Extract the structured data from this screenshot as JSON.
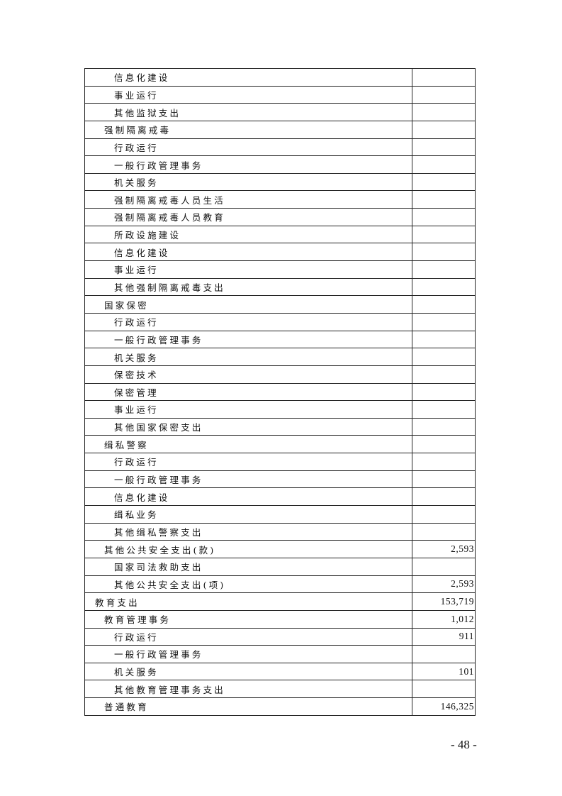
{
  "table": {
    "rows": [
      {
        "name": "信息化建设",
        "level": 2,
        "value": ""
      },
      {
        "name": "事业运行",
        "level": 2,
        "value": ""
      },
      {
        "name": "其他监狱支出",
        "level": 2,
        "value": ""
      },
      {
        "name": "强制隔离戒毒",
        "level": 1,
        "value": ""
      },
      {
        "name": "行政运行",
        "level": 2,
        "value": ""
      },
      {
        "name": "一般行政管理事务",
        "level": 2,
        "value": ""
      },
      {
        "name": "机关服务",
        "level": 2,
        "value": ""
      },
      {
        "name": "强制隔离戒毒人员生活",
        "level": 2,
        "value": ""
      },
      {
        "name": "强制隔离戒毒人员教育",
        "level": 2,
        "value": ""
      },
      {
        "name": "所政设施建设",
        "level": 2,
        "value": ""
      },
      {
        "name": "信息化建设",
        "level": 2,
        "value": ""
      },
      {
        "name": "事业运行",
        "level": 2,
        "value": ""
      },
      {
        "name": "其他强制隔离戒毒支出",
        "level": 2,
        "value": ""
      },
      {
        "name": "国家保密",
        "level": 1,
        "value": ""
      },
      {
        "name": "行政运行",
        "level": 2,
        "value": ""
      },
      {
        "name": "一般行政管理事务",
        "level": 2,
        "value": ""
      },
      {
        "name": "机关服务",
        "level": 2,
        "value": ""
      },
      {
        "name": "保密技术",
        "level": 2,
        "value": ""
      },
      {
        "name": "保密管理",
        "level": 2,
        "value": ""
      },
      {
        "name": "事业运行",
        "level": 2,
        "value": ""
      },
      {
        "name": "其他国家保密支出",
        "level": 2,
        "value": ""
      },
      {
        "name": "缉私警察",
        "level": 1,
        "value": ""
      },
      {
        "name": "行政运行",
        "level": 2,
        "value": ""
      },
      {
        "name": "一般行政管理事务",
        "level": 2,
        "value": ""
      },
      {
        "name": "信息化建设",
        "level": 2,
        "value": ""
      },
      {
        "name": "缉私业务",
        "level": 2,
        "value": ""
      },
      {
        "name": "其他缉私警察支出",
        "level": 2,
        "value": ""
      },
      {
        "name": "其他公共安全支出(款)",
        "level": 1,
        "value": "2,593"
      },
      {
        "name": "国家司法救助支出",
        "level": 2,
        "value": ""
      },
      {
        "name": "其他公共安全支出(项)",
        "level": 2,
        "value": "2,593"
      },
      {
        "name": "教育支出",
        "level": 0,
        "value": "153,719"
      },
      {
        "name": "教育管理事务",
        "level": 1,
        "value": "1,012"
      },
      {
        "name": "行政运行",
        "level": 2,
        "value": "911"
      },
      {
        "name": "一般行政管理事务",
        "level": 2,
        "value": ""
      },
      {
        "name": "机关服务",
        "level": 2,
        "value": "101"
      },
      {
        "name": "其他教育管理事务支出",
        "level": 2,
        "value": ""
      },
      {
        "name": "普通教育",
        "level": 1,
        "value": "146,325"
      }
    ]
  },
  "page_number": "- 48 -"
}
